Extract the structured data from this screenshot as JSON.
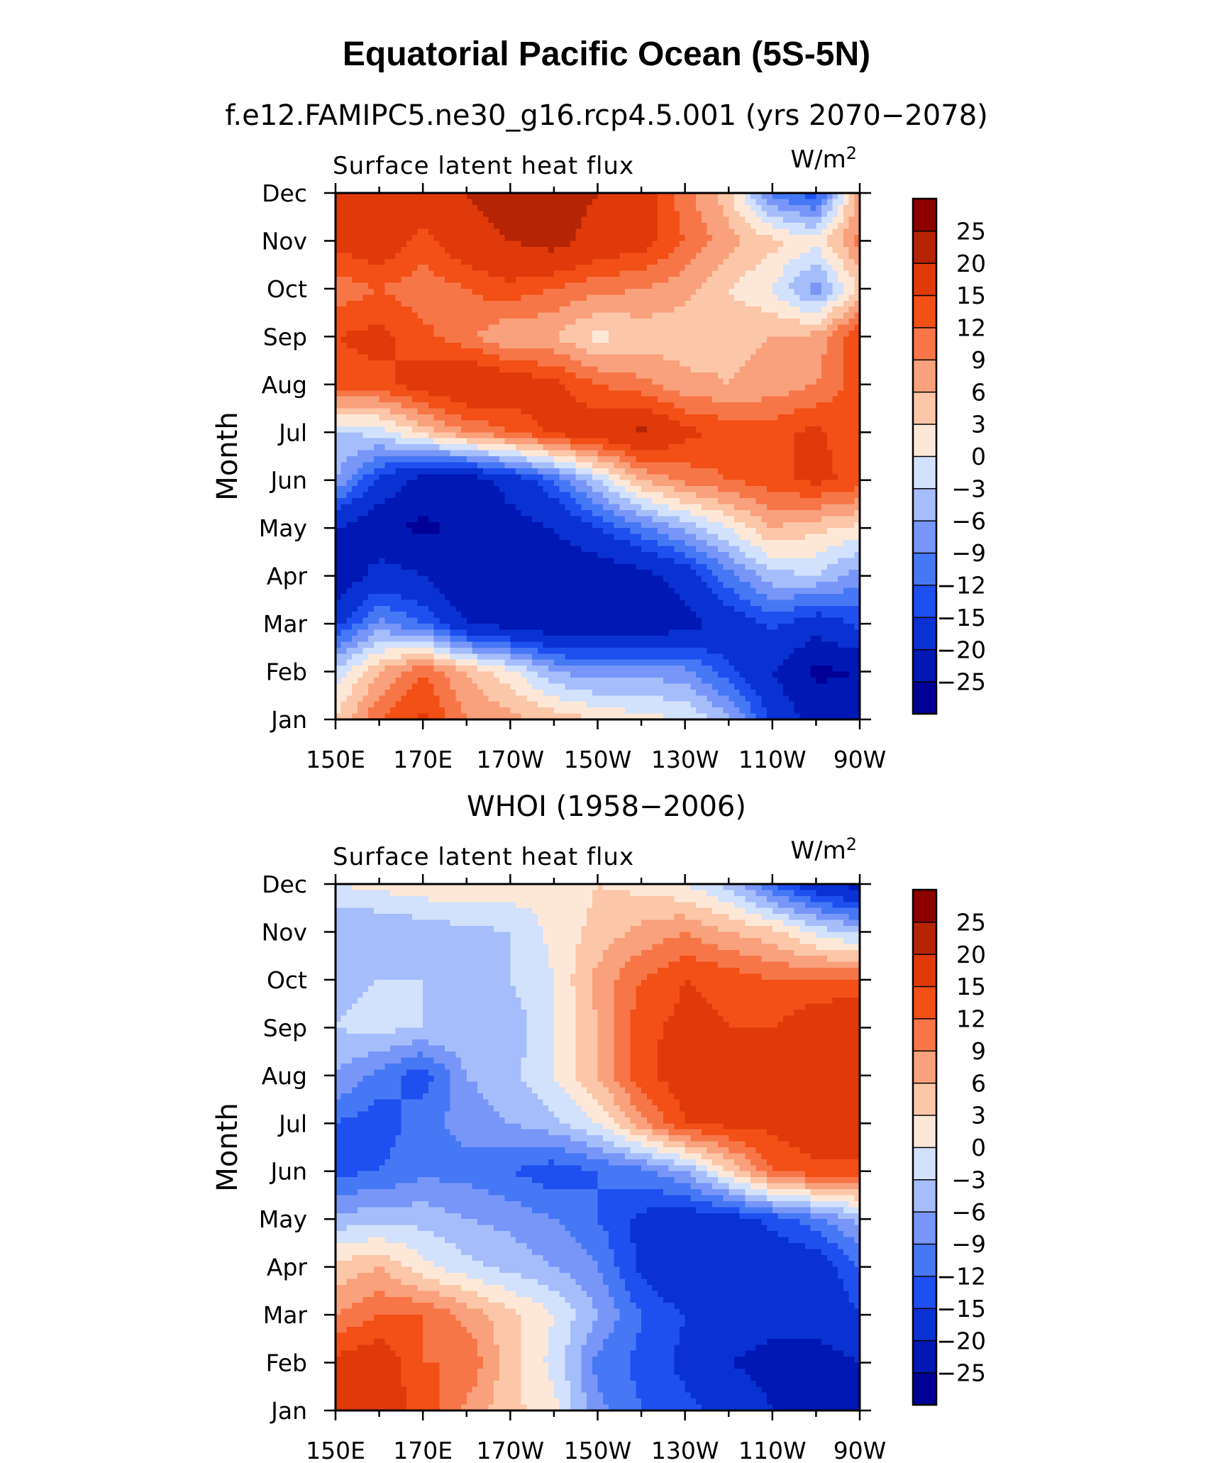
{
  "figure": {
    "title": "Equatorial Pacific Ocean (5S-5N)",
    "units_label": "W/m",
    "units_sup": "2"
  },
  "chart_data": [
    {
      "type": "heatmap",
      "title": "f.e12.FAMIPC5.ne30_g16.rcp4.5.001 (yrs 2070−2078)",
      "subtitle": "Surface latent heat flux",
      "units": "W/m²",
      "ylabel": "Month",
      "xlabel": "",
      "x_tick_labels": [
        "150E",
        "170E",
        "170W",
        "150W",
        "130W",
        "110W",
        "90W"
      ],
      "y_tick_labels": [
        "Jan",
        "Feb",
        "Mar",
        "Apr",
        "May",
        "Jun",
        "Jul",
        "Aug",
        "Sep",
        "Oct",
        "Nov",
        "Dec"
      ],
      "x_lon_east": [
        150,
        160,
        170,
        180,
        190,
        200,
        210,
        220,
        230,
        240,
        250,
        260,
        270
      ],
      "months": [
        "Jan",
        "Feb",
        "Mar",
        "Apr",
        "May",
        "Jun",
        "Jul",
        "Aug",
        "Sep",
        "Oct",
        "Nov",
        "Dec"
      ],
      "values": [
        [
          3,
          12,
          16,
          9,
          7,
          5,
          3,
          1,
          0,
          -5,
          -16,
          -22,
          -20
        ],
        [
          -2,
          6,
          12,
          6,
          1,
          -6,
          -8,
          -7,
          -8,
          -14,
          -20,
          -26,
          -25
        ],
        [
          -16,
          -8,
          -12,
          -20,
          -22,
          -24,
          -24,
          -24,
          -22,
          -18,
          -14,
          -18,
          -14
        ],
        [
          -24,
          -18,
          -20,
          -25,
          -24,
          -24,
          -24,
          -22,
          -18,
          -10,
          -4,
          -3,
          -8
        ],
        [
          -20,
          -24,
          -26,
          -24,
          -22,
          -20,
          -15,
          -10,
          -5,
          0,
          6,
          4,
          2
        ],
        [
          -6,
          -16,
          -22,
          -23,
          -18,
          -12,
          -3,
          6,
          10,
          12,
          14,
          16,
          14
        ],
        [
          -3,
          -2,
          4,
          9,
          12,
          16,
          18,
          21,
          16,
          14,
          14,
          16,
          12
        ],
        [
          14,
          14,
          17,
          20,
          18,
          16,
          12,
          10,
          7,
          6,
          7,
          9,
          14
        ],
        [
          15,
          16,
          13,
          10,
          6,
          6,
          2,
          4,
          4,
          5,
          6,
          7,
          15
        ],
        [
          10,
          12,
          10,
          12,
          14,
          12,
          10,
          9,
          7,
          3,
          0,
          -8,
          4
        ],
        [
          16,
          18,
          14,
          18,
          20,
          22,
          18,
          17,
          12,
          7,
          4,
          1,
          10
        ],
        [
          18,
          17,
          18,
          20,
          22,
          22,
          20,
          18,
          10,
          4,
          -10,
          -14,
          8
        ]
      ],
      "colorbar_labels": [
        "25",
        "20",
        "15",
        "12",
        "9",
        "6",
        "3",
        "0",
        "−3",
        "−6",
        "−9",
        "−12",
        "−15",
        "−20",
        "−25"
      ],
      "levels": [
        -25,
        -20,
        -15,
        -12,
        -9,
        -6,
        -3,
        0,
        3,
        6,
        9,
        12,
        15,
        20,
        25
      ],
      "colors": [
        "#000096",
        "#0018b4",
        "#0a32d2",
        "#1e50f0",
        "#4678f5",
        "#7896f8",
        "#a5bdfa",
        "#d2e1fc",
        "#fde8d8",
        "#fcc6a8",
        "#f9a07c",
        "#f77648",
        "#f25016",
        "#e03a0a",
        "#b52404",
        "#8c0000"
      ]
    },
    {
      "type": "heatmap",
      "title": "WHOI (1958−2006)",
      "subtitle": "Surface latent heat flux",
      "units": "W/m²",
      "ylabel": "Month",
      "xlabel": "",
      "x_tick_labels": [
        "150E",
        "170E",
        "170W",
        "150W",
        "130W",
        "110W",
        "90W"
      ],
      "y_tick_labels": [
        "Jan",
        "Feb",
        "Mar",
        "Apr",
        "May",
        "Jun",
        "Jul",
        "Aug",
        "Sep",
        "Oct",
        "Nov",
        "Dec"
      ],
      "x_lon_east": [
        150,
        160,
        170,
        180,
        190,
        200,
        210,
        220,
        230,
        240,
        250,
        260,
        270
      ],
      "months": [
        "Jan",
        "Feb",
        "Mar",
        "Apr",
        "May",
        "Jun",
        "Jul",
        "Aug",
        "Sep",
        "Oct",
        "Nov",
        "Dec"
      ],
      "values": [
        [
          16,
          17,
          14,
          8,
          4,
          1,
          -8,
          -12,
          -14,
          -16,
          -20,
          -22,
          -22
        ],
        [
          16,
          18,
          12,
          12,
          4,
          -1,
          -10,
          -13,
          -16,
          -20,
          -22,
          -22,
          -20
        ],
        [
          9,
          12,
          12,
          8,
          4,
          0,
          -6,
          -12,
          -15,
          -16,
          -18,
          -18,
          -15
        ],
        [
          4,
          6,
          1,
          -2,
          -4,
          -6,
          -9,
          -16,
          -20,
          -18,
          -18,
          -18,
          -12
        ],
        [
          -5,
          -4,
          -4,
          -6,
          -7,
          -9,
          -12,
          -16,
          -18,
          -17,
          -14,
          -10,
          -5
        ],
        [
          -13,
          -12,
          -10,
          -10,
          -12,
          -14,
          -12,
          -10,
          -6,
          3,
          12,
          14,
          14
        ],
        [
          -12,
          -14,
          -10,
          -8,
          -6,
          -4,
          0,
          8,
          15,
          16,
          16,
          18,
          18
        ],
        [
          -6,
          -10,
          -14,
          -6,
          -4,
          0,
          6,
          14,
          17,
          20,
          16,
          18,
          18
        ],
        [
          -3,
          -2,
          -3,
          -3,
          -5,
          0,
          6,
          14,
          16,
          15,
          15,
          18,
          20
        ],
        [
          -4,
          -3,
          -3,
          -4,
          -3,
          0,
          7,
          12,
          15,
          14,
          12,
          12,
          12
        ],
        [
          -6,
          -6,
          -5,
          -4,
          -3,
          1,
          4,
          7,
          9,
          6,
          4,
          -1,
          -4
        ],
        [
          0,
          1,
          2,
          3,
          2,
          1,
          3,
          2,
          0,
          -4,
          -12,
          -18,
          -22
        ]
      ],
      "colorbar_labels": [
        "25",
        "20",
        "15",
        "12",
        "9",
        "6",
        "3",
        "0",
        "−3",
        "−6",
        "−9",
        "−12",
        "−15",
        "−20",
        "−25"
      ],
      "levels": [
        -25,
        -20,
        -15,
        -12,
        -9,
        -6,
        -3,
        0,
        3,
        6,
        9,
        12,
        15,
        20,
        25
      ],
      "colors": [
        "#000096",
        "#0018b4",
        "#0a32d2",
        "#1e50f0",
        "#4678f5",
        "#7896f8",
        "#a5bdfa",
        "#d2e1fc",
        "#fde8d8",
        "#fcc6a8",
        "#f9a07c",
        "#f77648",
        "#f25016",
        "#e03a0a",
        "#b52404",
        "#8c0000"
      ]
    }
  ]
}
